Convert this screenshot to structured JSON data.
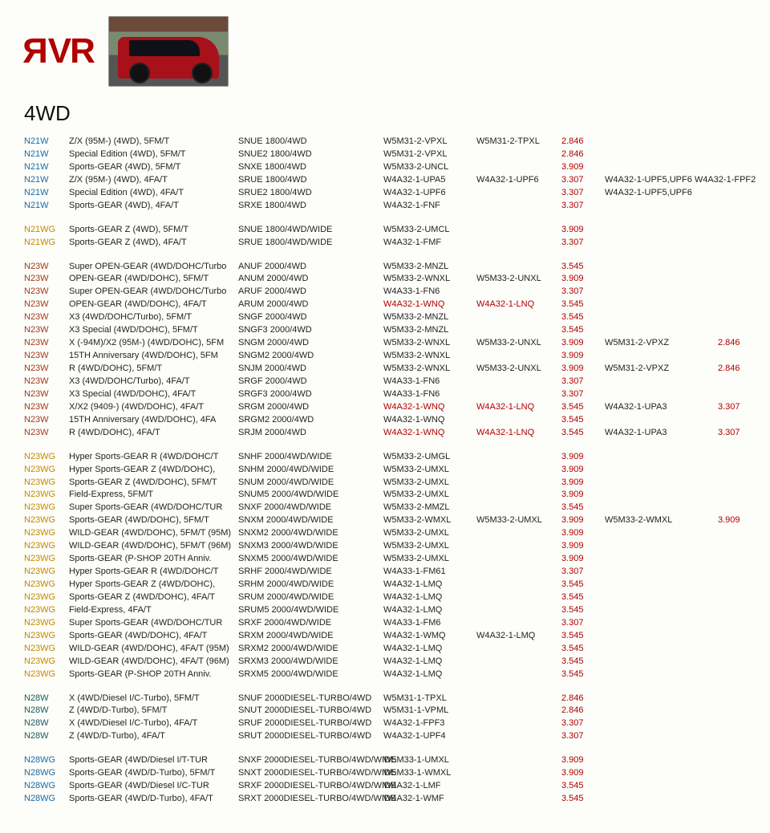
{
  "header": {
    "logo_text": "ЯVR",
    "section_title": "4WD"
  },
  "model_colors": {
    "N21W": "#1a6aa8",
    "N21WG": "#c28a00",
    "N23W": "#a03a1a",
    "N23WG": "#c28a00",
    "N28W": "#1a5a5a",
    "N28WG": "#1a6aa8"
  },
  "table": {
    "groups": [
      {
        "rows": [
          {
            "model": "N21W",
            "desc": "Z/X (95M-) (4WD), 5FM/T",
            "engine": "SNUE 1800/4WD",
            "trans1": "W5M31-2-VPXL",
            "trans2": "W5M31-2-TPXL",
            "ratio1": "2.846",
            "extra": "",
            "ratio2": ""
          },
          {
            "model": "N21W",
            "desc": "Special Edition (4WD), 5FM/T",
            "engine": "SNUE2 1800/4WD",
            "trans1": "W5M31-2-VPXL",
            "trans2": "",
            "ratio1": "2.846",
            "extra": "",
            "ratio2": ""
          },
          {
            "model": "N21W",
            "desc": "Sports-GEAR (4WD), 5FM/T",
            "engine": "SNXE 1800/4WD",
            "trans1": "W5M33-2-UNCL",
            "trans2": "",
            "ratio1": "3.909",
            "extra": "",
            "ratio2": ""
          },
          {
            "model": "N21W",
            "desc": "Z/X (95M-) (4WD), 4FA/T",
            "engine": "SRUE 1800/4WD",
            "trans1": "W4A32-1-UPA5",
            "trans2": "W4A32-1-UPF6",
            "ratio1": "3.307",
            "extra": "W4A32-1-UPF5,UPF6  W4A32-1-FPF2",
            "ratio2": ""
          },
          {
            "model": "N21W",
            "desc": "Special Edition (4WD), 4FA/T",
            "engine": "SRUE2 1800/4WD",
            "trans1": "W4A32-1-UPF6",
            "trans2": "",
            "ratio1": "3.307",
            "extra": "W4A32-1-UPF5,UPF6",
            "ratio2": ""
          },
          {
            "model": "N21W",
            "desc": "Sports-GEAR (4WD), 4FA/T",
            "engine": "SRXE 1800/4WD",
            "trans1": "W4A32-1-FNF",
            "trans2": "",
            "ratio1": "3.307",
            "extra": "",
            "ratio2": ""
          }
        ]
      },
      {
        "rows": [
          {
            "model": "N21WG",
            "desc": "Sports-GEAR Z (4WD), 5FM/T",
            "engine": "SNUE 1800/4WD/WIDE",
            "trans1": "W5M33-2-UMCL",
            "trans2": "",
            "ratio1": "3.909",
            "extra": "",
            "ratio2": ""
          },
          {
            "model": "N21WG",
            "desc": "Sports-GEAR Z (4WD), 4FA/T",
            "engine": "SRUE 1800/4WD/WIDE",
            "trans1": "W4A32-1-FMF",
            "trans2": "",
            "ratio1": "3.307",
            "extra": "",
            "ratio2": ""
          }
        ]
      },
      {
        "rows": [
          {
            "model": "N23W",
            "desc": "Super OPEN-GEAR (4WD/DOHC/Turbo",
            "engine": "ANUF 2000/4WD",
            "trans1": "W5M33-2-MNZL",
            "trans2": "",
            "ratio1": "3.545",
            "extra": "",
            "ratio2": ""
          },
          {
            "model": "N23W",
            "desc": "OPEN-GEAR (4WD/DOHC), 5FM/T",
            "engine": "ANUM 2000/4WD",
            "trans1": "W5M33-2-WNXL",
            "trans2": "W5M33-2-UNXL",
            "ratio1": "3.909",
            "extra": "",
            "ratio2": ""
          },
          {
            "model": "N23W",
            "desc": "Super OPEN-GEAR (4WD/DOHC/Turbo",
            "engine": "ARUF 2000/4WD",
            "trans1": "W4A33-1-FN6",
            "trans2": "",
            "ratio1": "3.307",
            "extra": "",
            "ratio2": ""
          },
          {
            "model": "N23W",
            "desc": "OPEN-GEAR (4WD/DOHC), 4FA/T",
            "engine": "ARUM 2000/4WD",
            "trans1": "W4A32-1-WNQ",
            "trans1_red": true,
            "trans2": "W4A32-1-LNQ",
            "trans2_red": true,
            "ratio1": "3.545",
            "extra": "",
            "ratio2": ""
          },
          {
            "model": "N23W",
            "desc": "X3 (4WD/DOHC/Turbo), 5FM/T",
            "engine": "SNGF 2000/4WD",
            "trans1": "W5M33-2-MNZL",
            "trans2": "",
            "ratio1": "3.545",
            "extra": "",
            "ratio2": ""
          },
          {
            "model": "N23W",
            "desc": "X3 Special (4WD/DOHC), 5FM/T",
            "engine": "SNGF3 2000/4WD",
            "trans1": "W5M33-2-MNZL",
            "trans2": "",
            "ratio1": "3.545",
            "extra": "",
            "ratio2": ""
          },
          {
            "model": "N23W",
            "desc": "X (-94M)/X2 (95M-) (4WD/DOHC), 5FM",
            "engine": "SNGM 2000/4WD",
            "trans1": "W5M33-2-WNXL",
            "trans2": "W5M33-2-UNXL",
            "ratio1": "3.909",
            "extra": "W5M31-2-VPXZ",
            "ratio2": "2.846"
          },
          {
            "model": "N23W",
            "desc": "15TH Anniversary (4WD/DOHC), 5FM",
            "engine": "SNGM2 2000/4WD",
            "trans1": "W5M33-2-WNXL",
            "trans2": "",
            "ratio1": "3.909",
            "extra": "",
            "ratio2": ""
          },
          {
            "model": "N23W",
            "desc": "R (4WD/DOHC), 5FM/T",
            "engine": "SNJM 2000/4WD",
            "trans1": "W5M33-2-WNXL",
            "trans2": "W5M33-2-UNXL",
            "ratio1": "3.909",
            "extra": "W5M31-2-VPXZ",
            "ratio2": "2.846"
          },
          {
            "model": "N23W",
            "desc": "X3 (4WD/DOHC/Turbo), 4FA/T",
            "engine": "SRGF 2000/4WD",
            "trans1": "W4A33-1-FN6",
            "trans2": "",
            "ratio1": "3.307",
            "extra": "",
            "ratio2": ""
          },
          {
            "model": "N23W",
            "desc": "X3 Special (4WD/DOHC), 4FA/T",
            "engine": "SRGF3 2000/4WD",
            "trans1": "W4A33-1-FN6",
            "trans2": "",
            "ratio1": "3.307",
            "extra": "",
            "ratio2": ""
          },
          {
            "model": "N23W",
            "desc": "X/X2 (9409-) (4WD/DOHC), 4FA/T",
            "engine": "SRGM 2000/4WD",
            "trans1": "W4A32-1-WNQ",
            "trans1_red": true,
            "trans2": "W4A32-1-LNQ",
            "trans2_red": true,
            "ratio1": "3.545",
            "extra": "W4A32-1-UPA3",
            "ratio2": "3.307"
          },
          {
            "model": "N23W",
            "desc": "15TH Anniversary (4WD/DOHC), 4FA",
            "engine": "SRGM2 2000/4WD",
            "trans1": "W4A32-1-WNQ",
            "trans2": "",
            "ratio1": "3.545",
            "extra": "",
            "ratio2": ""
          },
          {
            "model": "N23W",
            "desc": "R (4WD/DOHC), 4FA/T",
            "engine": "SRJM 2000/4WD",
            "trans1": "W4A32-1-WNQ",
            "trans1_red": true,
            "trans2": "W4A32-1-LNQ",
            "trans2_red": true,
            "ratio1": "3.545",
            "extra": "W4A32-1-UPA3",
            "ratio2": "3.307"
          }
        ]
      },
      {
        "rows": [
          {
            "model": "N23WG",
            "desc": "Hyper Sports-GEAR R (4WD/DOHC/T",
            "engine": "SNHF 2000/4WD/WIDE",
            "trans1": "W5M33-2-UMGL",
            "trans2": "",
            "ratio1": "3.909",
            "extra": "",
            "ratio2": ""
          },
          {
            "model": "N23WG",
            "desc": "Hyper Sports-GEAR Z (4WD/DOHC),",
            "engine": "SNHM 2000/4WD/WIDE",
            "trans1": "W5M33-2-UMXL",
            "trans2": "",
            "ratio1": "3.909",
            "extra": "",
            "ratio2": ""
          },
          {
            "model": "N23WG",
            "desc": "Sports-GEAR Z (4WD/DOHC), 5FM/T",
            "engine": "SNUM 2000/4WD/WIDE",
            "trans1": "W5M33-2-UMXL",
            "trans2": "",
            "ratio1": "3.909",
            "extra": "",
            "ratio2": ""
          },
          {
            "model": "N23WG",
            "desc": "Field-Express, 5FM/T",
            "engine": "SNUM5 2000/4WD/WIDE",
            "trans1": "W5M33-2-UMXL",
            "trans2": "",
            "ratio1": "3.909",
            "extra": "",
            "ratio2": ""
          },
          {
            "model": "N23WG",
            "desc": "Super Sports-GEAR (4WD/DOHC/TUR",
            "engine": "SNXF 2000/4WD/WIDE",
            "trans1": "W5M33-2-MMZL",
            "trans2": "",
            "ratio1": "3.545",
            "extra": "",
            "ratio2": ""
          },
          {
            "model": "N23WG",
            "desc": "Sports-GEAR (4WD/DOHC), 5FM/T",
            "engine": "SNXM 2000/4WD/WIDE",
            "trans1": "W5M33-2-WMXL",
            "trans2": "W5M33-2-UMXL",
            "ratio1": "3.909",
            "extra": "W5M33-2-WMXL",
            "ratio2": "3.909"
          },
          {
            "model": "N23WG",
            "desc": "WILD-GEAR (4WD/DOHC), 5FM/T (95M)",
            "engine": "SNXM2 2000/4WD/WIDE",
            "trans1": "W5M33-2-UMXL",
            "trans2": "",
            "ratio1": "3.909",
            "extra": "",
            "ratio2": ""
          },
          {
            "model": "N23WG",
            "desc": "WILD-GEAR (4WD/DOHC), 5FM/T (96M)",
            "engine": "SNXM3 2000/4WD/WIDE",
            "trans1": "W5M33-2-UMXL",
            "trans2": "",
            "ratio1": "3.909",
            "extra": "",
            "ratio2": ""
          },
          {
            "model": "N23WG",
            "desc": "Sports-GEAR (P-SHOP 20TH Anniv.",
            "engine": "SNXM5 2000/4WD/WIDE",
            "trans1": "W5M33-2-UMXL",
            "trans2": "",
            "ratio1": "3.909",
            "extra": "",
            "ratio2": ""
          },
          {
            "model": "N23WG",
            "desc": "Hyper Sports-GEAR R (4WD/DOHC/T",
            "engine": "SRHF 2000/4WD/WIDE",
            "trans1": "W4A33-1-FM61",
            "trans2": "",
            "ratio1": "3.307",
            "extra": "",
            "ratio2": ""
          },
          {
            "model": "N23WG",
            "desc": "Hyper Sports-GEAR Z (4WD/DOHC),",
            "engine": "SRHM 2000/4WD/WIDE",
            "trans1": "W4A32-1-LMQ",
            "trans2": "",
            "ratio1": "3.545",
            "extra": "",
            "ratio2": ""
          },
          {
            "model": "N23WG",
            "desc": "Sports-GEAR Z (4WD/DOHC), 4FA/T",
            "engine": "SRUM 2000/4WD/WIDE",
            "trans1": "W4A32-1-LMQ",
            "trans2": "",
            "ratio1": "3.545",
            "extra": "",
            "ratio2": ""
          },
          {
            "model": "N23WG",
            "desc": "Field-Express, 4FA/T",
            "engine": "SRUM5 2000/4WD/WIDE",
            "trans1": "W4A32-1-LMQ",
            "trans2": "",
            "ratio1": "3.545",
            "extra": "",
            "ratio2": ""
          },
          {
            "model": "N23WG",
            "desc": "Super Sports-GEAR (4WD/DOHC/TUR",
            "engine": "SRXF 2000/4WD/WIDE",
            "trans1": "W4A33-1-FM6",
            "trans2": "",
            "ratio1": "3.307",
            "extra": "",
            "ratio2": ""
          },
          {
            "model": "N23WG",
            "desc": "Sports-GEAR (4WD/DOHC), 4FA/T",
            "engine": "SRXM 2000/4WD/WIDE",
            "trans1": "W4A32-1-WMQ",
            "trans2": "W4A32-1-LMQ",
            "ratio1": "3.545",
            "extra": "",
            "ratio2": ""
          },
          {
            "model": "N23WG",
            "desc": "WILD-GEAR (4WD/DOHC), 4FA/T (95M)",
            "engine": "SRXM2 2000/4WD/WIDE",
            "trans1": "W4A32-1-LMQ",
            "trans2": "",
            "ratio1": "3.545",
            "extra": "",
            "ratio2": ""
          },
          {
            "model": "N23WG",
            "desc": "WILD-GEAR (4WD/DOHC), 4FA/T (96M)",
            "engine": "SRXM3 2000/4WD/WIDE",
            "trans1": "W4A32-1-LMQ",
            "trans2": "",
            "ratio1": "3.545",
            "extra": "",
            "ratio2": ""
          },
          {
            "model": "N23WG",
            "desc": "Sports-GEAR (P-SHOP 20TH Anniv.",
            "engine": "SRXM5 2000/4WD/WIDE",
            "trans1": "W4A32-1-LMQ",
            "trans2": "",
            "ratio1": "3.545",
            "extra": "",
            "ratio2": ""
          }
        ]
      },
      {
        "rows": [
          {
            "model": "N28W",
            "desc": "X (4WD/Diesel I/C-Turbo), 5FM/T",
            "engine": "SNUF 2000DIESEL-TURBO/4WD",
            "trans1": "W5M31-1-TPXL",
            "trans2": "",
            "ratio1": "2.846",
            "extra": "",
            "ratio2": ""
          },
          {
            "model": "N28W",
            "desc": "Z (4WD/D-Turbo), 5FM/T",
            "engine": "SNUT 2000DIESEL-TURBO/4WD",
            "trans1": "W5M31-1-VPML",
            "trans2": "",
            "ratio1": "2.846",
            "extra": "",
            "ratio2": ""
          },
          {
            "model": "N28W",
            "desc": "X (4WD/Diesel I/C-Turbo), 4FA/T",
            "engine": "SRUF 2000DIESEL-TURBO/4WD",
            "trans1": "W4A32-1-FPF3",
            "trans2": "",
            "ratio1": "3.307",
            "extra": "",
            "ratio2": ""
          },
          {
            "model": "N28W",
            "desc": "Z (4WD/D-Turbo), 4FA/T",
            "engine": "SRUT 2000DIESEL-TURBO/4WD",
            "trans1": "W4A32-1-UPF4",
            "trans2": "",
            "ratio1": "3.307",
            "extra": "",
            "ratio2": ""
          }
        ]
      },
      {
        "rows": [
          {
            "model": "N28WG",
            "desc": "Sports-GEAR (4WD/Diesel I/T-TUR",
            "engine": "SNXF 2000DIESEL-TURBO/4WD/WIDE",
            "trans1": "W5M33-1-UMXL",
            "trans2": "",
            "ratio1": "3.909",
            "extra": "",
            "ratio2": ""
          },
          {
            "model": "N28WG",
            "desc": "Sports-GEAR (4WD/D-Turbo), 5FM/T",
            "engine": "SNXT 2000DIESEL-TURBO/4WD/WIDE",
            "trans1": "W5M33-1-WMXL",
            "trans2": "",
            "ratio1": "3.909",
            "extra": "",
            "ratio2": ""
          },
          {
            "model": "N28WG",
            "desc": "Sports-GEAR (4WD/Diesel I/C-TUR",
            "engine": "SRXF 2000DIESEL-TURBO/4WD/WIDE",
            "trans1": "W4A32-1-LMF",
            "trans2": "",
            "ratio1": "3.545",
            "extra": "",
            "ratio2": ""
          },
          {
            "model": "N28WG",
            "desc": "Sports-GEAR (4WD/D-Turbo), 4FA/T",
            "engine": "SRXT 2000DIESEL-TURBO/4WD/WIDE",
            "trans1": "W4A32-1-WMF",
            "trans2": "",
            "ratio1": "3.545",
            "extra": "",
            "ratio2": ""
          }
        ]
      }
    ]
  }
}
